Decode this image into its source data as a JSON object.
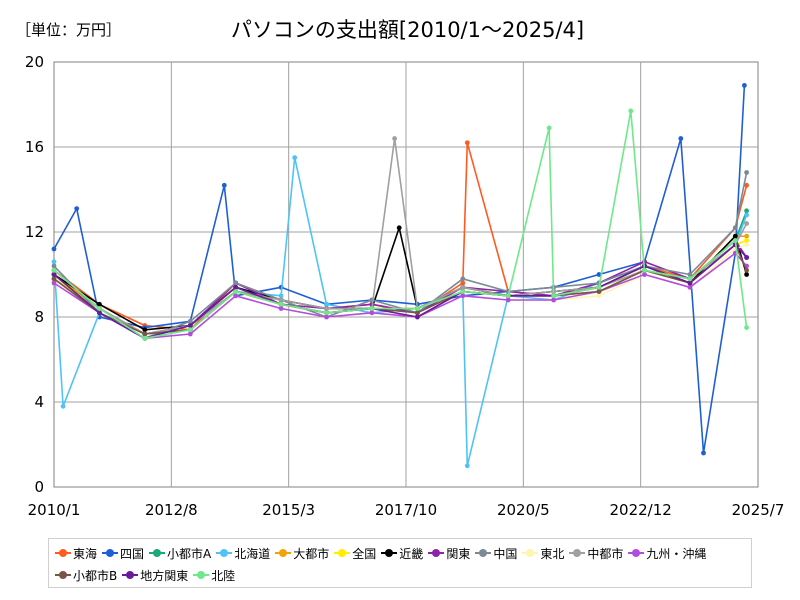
{
  "header": {
    "unit_label": "［単位：万円］",
    "title": "パソコンの支出額[2010/1～2025/4]"
  },
  "chart_data": {
    "type": "line",
    "title": "パソコンの支出額[2010/1～2025/4]",
    "unit": "［単位：万円］",
    "xlabel": "",
    "ylabel": "",
    "ylim": [
      0,
      20
    ],
    "y_ticks": [
      "0",
      "4",
      "8",
      "12",
      "16",
      "20"
    ],
    "x_ticks": [
      "2010/1",
      "2012/8",
      "2015/3",
      "2017/10",
      "2020/5",
      "2022/12",
      "2025/7"
    ],
    "grid": true,
    "legend_position": "bottom",
    "series": [
      {
        "name": "東海",
        "color": "#ff5a1f",
        "points": [
          [
            2010.0,
            10.2
          ],
          [
            2011.0,
            8.6
          ],
          [
            2012.0,
            7.6
          ],
          [
            2013.0,
            7.4
          ],
          [
            2014.0,
            9.6
          ],
          [
            2015.0,
            8.8
          ],
          [
            2016.0,
            8.4
          ],
          [
            2017.0,
            8.6
          ],
          [
            2018.0,
            8.2
          ],
          [
            2019.0,
            9.6
          ],
          [
            2019.1,
            16.2
          ],
          [
            2020.0,
            9.2
          ],
          [
            2021.0,
            9.0
          ],
          [
            2022.0,
            9.4
          ],
          [
            2023.0,
            10.4
          ],
          [
            2024.0,
            9.8
          ],
          [
            2025.0,
            12.2
          ],
          [
            2025.25,
            14.2
          ]
        ]
      },
      {
        "name": "四国",
        "color": "#1f5fd6",
        "points": [
          [
            2010.0,
            11.2
          ],
          [
            2010.5,
            13.1
          ],
          [
            2011.0,
            8.0
          ],
          [
            2012.0,
            7.5
          ],
          [
            2013.0,
            7.8
          ],
          [
            2013.75,
            14.2
          ],
          [
            2014.0,
            9.0
          ],
          [
            2015.0,
            9.4
          ],
          [
            2016.0,
            8.6
          ],
          [
            2017.0,
            8.8
          ],
          [
            2018.0,
            8.6
          ],
          [
            2019.0,
            9.0
          ],
          [
            2020.0,
            9.2
          ],
          [
            2021.0,
            9.4
          ],
          [
            2022.0,
            10.0
          ],
          [
            2023.0,
            10.6
          ],
          [
            2023.8,
            16.4
          ],
          [
            2024.3,
            1.6
          ],
          [
            2025.0,
            11.0
          ],
          [
            2025.2,
            18.9
          ]
        ]
      },
      {
        "name": "小都市A",
        "color": "#1aaa7a",
        "points": [
          [
            2010.0,
            9.8
          ],
          [
            2011.0,
            8.4
          ],
          [
            2012.0,
            7.2
          ],
          [
            2013.0,
            7.4
          ],
          [
            2014.0,
            9.2
          ],
          [
            2015.0,
            8.6
          ],
          [
            2016.0,
            8.2
          ],
          [
            2017.0,
            8.4
          ],
          [
            2018.0,
            8.4
          ],
          [
            2019.0,
            9.2
          ],
          [
            2020.0,
            9.0
          ],
          [
            2021.0,
            9.0
          ],
          [
            2022.0,
            9.2
          ],
          [
            2023.0,
            10.2
          ],
          [
            2024.0,
            9.8
          ],
          [
            2025.0,
            11.6
          ],
          [
            2025.25,
            13.0
          ]
        ]
      },
      {
        "name": "北海道",
        "color": "#4fc3f7",
        "points": [
          [
            2010.0,
            10.6
          ],
          [
            2010.2,
            3.8
          ],
          [
            2011.0,
            8.2
          ],
          [
            2012.0,
            7.0
          ],
          [
            2013.0,
            7.6
          ],
          [
            2014.0,
            9.2
          ],
          [
            2015.0,
            9.0
          ],
          [
            2015.3,
            15.5
          ],
          [
            2016.0,
            8.6
          ],
          [
            2017.0,
            8.2
          ],
          [
            2018.0,
            8.4
          ],
          [
            2019.0,
            9.2
          ],
          [
            2019.1,
            1.0
          ],
          [
            2020.0,
            9.0
          ],
          [
            2021.0,
            8.8
          ],
          [
            2022.0,
            9.6
          ],
          [
            2023.0,
            10.4
          ],
          [
            2024.0,
            9.6
          ],
          [
            2025.0,
            11.4
          ],
          [
            2025.25,
            12.8
          ]
        ]
      },
      {
        "name": "大都市",
        "color": "#f0a30a",
        "points": [
          [
            2010.0,
            10.0
          ],
          [
            2011.0,
            8.4
          ],
          [
            2012.0,
            7.2
          ],
          [
            2013.0,
            7.6
          ],
          [
            2014.0,
            9.4
          ],
          [
            2015.0,
            8.6
          ],
          [
            2016.0,
            8.2
          ],
          [
            2017.0,
            8.4
          ],
          [
            2018.0,
            8.4
          ],
          [
            2019.0,
            9.4
          ],
          [
            2020.0,
            9.0
          ],
          [
            2021.0,
            9.2
          ],
          [
            2022.0,
            9.4
          ],
          [
            2023.0,
            10.4
          ],
          [
            2024.0,
            9.6
          ],
          [
            2025.0,
            11.8
          ],
          [
            2025.25,
            11.8
          ]
        ]
      },
      {
        "name": "全国",
        "color": "#ffee00",
        "points": [
          [
            2010.0,
            9.8
          ],
          [
            2011.0,
            8.4
          ],
          [
            2012.0,
            7.2
          ],
          [
            2013.0,
            7.4
          ],
          [
            2014.0,
            9.2
          ],
          [
            2015.0,
            8.6
          ],
          [
            2016.0,
            8.2
          ],
          [
            2017.0,
            8.4
          ],
          [
            2018.0,
            8.4
          ],
          [
            2019.0,
            9.2
          ],
          [
            2020.0,
            9.0
          ],
          [
            2021.0,
            9.0
          ],
          [
            2022.0,
            9.2
          ],
          [
            2023.0,
            10.2
          ],
          [
            2024.0,
            9.6
          ],
          [
            2025.0,
            11.4
          ],
          [
            2025.25,
            11.6
          ]
        ]
      },
      {
        "name": "近畿",
        "color": "#000000",
        "points": [
          [
            2010.0,
            10.0
          ],
          [
            2011.0,
            8.6
          ],
          [
            2012.0,
            7.4
          ],
          [
            2013.0,
            7.6
          ],
          [
            2014.0,
            9.4
          ],
          [
            2015.0,
            8.8
          ],
          [
            2016.0,
            8.4
          ],
          [
            2017.0,
            8.4
          ],
          [
            2017.6,
            12.2
          ],
          [
            2018.0,
            8.4
          ],
          [
            2019.0,
            9.4
          ],
          [
            2020.0,
            9.0
          ],
          [
            2021.0,
            9.2
          ],
          [
            2022.0,
            9.4
          ],
          [
            2023.0,
            10.4
          ],
          [
            2024.0,
            9.6
          ],
          [
            2025.0,
            11.8
          ],
          [
            2025.25,
            10.0
          ]
        ]
      },
      {
        "name": "関東",
        "color": "#8e24aa",
        "points": [
          [
            2010.0,
            10.2
          ],
          [
            2011.0,
            8.4
          ],
          [
            2012.0,
            7.2
          ],
          [
            2013.0,
            7.6
          ],
          [
            2014.0,
            9.6
          ],
          [
            2015.0,
            8.6
          ],
          [
            2016.0,
            8.4
          ],
          [
            2017.0,
            8.6
          ],
          [
            2018.0,
            8.2
          ],
          [
            2019.0,
            9.4
          ],
          [
            2020.0,
            9.2
          ],
          [
            2021.0,
            9.0
          ],
          [
            2022.0,
            9.6
          ],
          [
            2023.0,
            10.6
          ],
          [
            2024.0,
            9.8
          ],
          [
            2025.0,
            11.6
          ],
          [
            2025.25,
            10.8
          ]
        ]
      },
      {
        "name": "中国",
        "color": "#7b8a97",
        "points": [
          [
            2010.0,
            10.4
          ],
          [
            2011.0,
            8.2
          ],
          [
            2012.0,
            7.0
          ],
          [
            2013.0,
            7.8
          ],
          [
            2014.0,
            9.6
          ],
          [
            2015.0,
            8.8
          ],
          [
            2016.0,
            8.0
          ],
          [
            2017.0,
            8.8
          ],
          [
            2018.0,
            8.2
          ],
          [
            2019.0,
            9.8
          ],
          [
            2020.0,
            9.2
          ],
          [
            2021.0,
            9.4
          ],
          [
            2022.0,
            9.6
          ],
          [
            2023.0,
            10.4
          ],
          [
            2024.0,
            10.0
          ],
          [
            2025.0,
            12.2
          ],
          [
            2025.25,
            14.8
          ]
        ]
      },
      {
        "name": "東北",
        "color": "#fff4b0",
        "points": [
          [
            2010.0,
            9.6
          ],
          [
            2011.0,
            8.2
          ],
          [
            2012.0,
            7.0
          ],
          [
            2013.0,
            7.2
          ],
          [
            2014.0,
            9.0
          ],
          [
            2015.0,
            8.4
          ],
          [
            2016.0,
            8.0
          ],
          [
            2017.0,
            8.2
          ],
          [
            2018.0,
            8.0
          ],
          [
            2019.0,
            9.0
          ],
          [
            2020.0,
            8.8
          ],
          [
            2021.0,
            8.8
          ],
          [
            2022.0,
            9.0
          ],
          [
            2023.0,
            10.0
          ],
          [
            2024.0,
            9.4
          ],
          [
            2025.0,
            11.2
          ],
          [
            2025.25,
            11.4
          ]
        ]
      },
      {
        "name": "中都市",
        "color": "#a0a0a0",
        "points": [
          [
            2010.0,
            10.2
          ],
          [
            2011.0,
            8.4
          ],
          [
            2012.0,
            7.2
          ],
          [
            2013.0,
            7.6
          ],
          [
            2014.0,
            9.2
          ],
          [
            2015.0,
            8.8
          ],
          [
            2016.0,
            8.4
          ],
          [
            2017.0,
            8.4
          ],
          [
            2017.5,
            16.4
          ],
          [
            2018.0,
            8.4
          ],
          [
            2019.0,
            9.4
          ],
          [
            2020.0,
            9.0
          ],
          [
            2021.0,
            9.2
          ],
          [
            2022.0,
            9.4
          ],
          [
            2023.0,
            10.2
          ],
          [
            2024.0,
            9.8
          ],
          [
            2025.0,
            11.4
          ],
          [
            2025.25,
            12.4
          ]
        ]
      },
      {
        "name": "九州・沖縄",
        "color": "#b44be0",
        "points": [
          [
            2010.0,
            9.6
          ],
          [
            2011.0,
            8.2
          ],
          [
            2012.0,
            7.0
          ],
          [
            2013.0,
            7.2
          ],
          [
            2014.0,
            9.0
          ],
          [
            2015.0,
            8.4
          ],
          [
            2016.0,
            8.0
          ],
          [
            2017.0,
            8.2
          ],
          [
            2018.0,
            8.0
          ],
          [
            2019.0,
            9.0
          ],
          [
            2020.0,
            8.8
          ],
          [
            2021.0,
            8.8
          ],
          [
            2022.0,
            9.2
          ],
          [
            2023.0,
            10.0
          ],
          [
            2024.0,
            9.4
          ],
          [
            2025.0,
            11.0
          ],
          [
            2025.25,
            10.4
          ]
        ]
      },
      {
        "name": "小都市B",
        "color": "#795548",
        "points": [
          [
            2010.0,
            9.8
          ],
          [
            2011.0,
            8.2
          ],
          [
            2012.0,
            7.2
          ],
          [
            2013.0,
            7.4
          ],
          [
            2014.0,
            9.2
          ],
          [
            2015.0,
            8.6
          ],
          [
            2016.0,
            8.2
          ],
          [
            2017.0,
            8.4
          ],
          [
            2018.0,
            8.2
          ],
          [
            2019.0,
            9.2
          ],
          [
            2020.0,
            9.0
          ],
          [
            2021.0,
            9.0
          ],
          [
            2022.0,
            9.2
          ],
          [
            2023.0,
            10.2
          ],
          [
            2024.0,
            9.6
          ],
          [
            2025.0,
            11.4
          ],
          [
            2025.25,
            10.2
          ]
        ]
      },
      {
        "name": "地方関東",
        "color": "#6a1b9a",
        "points": [
          [
            2010.0,
            10.0
          ],
          [
            2011.0,
            8.2
          ],
          [
            2012.0,
            7.0
          ],
          [
            2013.0,
            7.6
          ],
          [
            2014.0,
            9.4
          ],
          [
            2015.0,
            8.6
          ],
          [
            2016.0,
            8.2
          ],
          [
            2017.0,
            8.4
          ],
          [
            2018.0,
            8.0
          ],
          [
            2019.0,
            9.2
          ],
          [
            2020.0,
            9.0
          ],
          [
            2021.0,
            9.0
          ],
          [
            2022.0,
            9.4
          ],
          [
            2023.0,
            10.4
          ],
          [
            2024.0,
            9.6
          ],
          [
            2025.0,
            11.4
          ],
          [
            2025.25,
            10.8
          ]
        ]
      },
      {
        "name": "北陸",
        "color": "#6fe88a",
        "points": [
          [
            2010.0,
            10.2
          ],
          [
            2011.0,
            8.4
          ],
          [
            2012.0,
            7.0
          ],
          [
            2013.0,
            7.4
          ],
          [
            2014.0,
            9.2
          ],
          [
            2015.0,
            8.6
          ],
          [
            2016.0,
            8.2
          ],
          [
            2017.0,
            8.4
          ],
          [
            2018.0,
            8.4
          ],
          [
            2019.0,
            9.2
          ],
          [
            2020.0,
            9.0
          ],
          [
            2020.9,
            16.9
          ],
          [
            2021.0,
            9.0
          ],
          [
            2022.0,
            9.4
          ],
          [
            2022.7,
            17.7
          ],
          [
            2023.0,
            10.2
          ],
          [
            2024.0,
            9.8
          ],
          [
            2025.0,
            11.6
          ],
          [
            2025.25,
            7.5
          ]
        ]
      }
    ]
  }
}
